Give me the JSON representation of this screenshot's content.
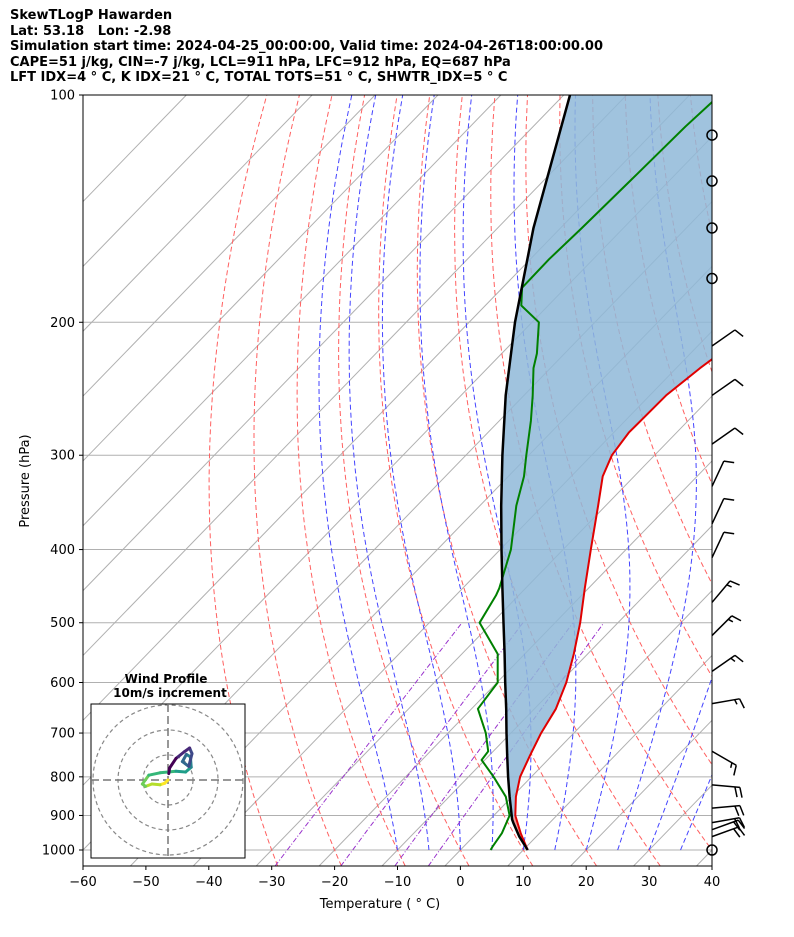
{
  "header": {
    "line1": "SkewTLogP Hawarden",
    "line2": "Lat: 53.18   Lon: -2.98",
    "line3": "Simulation start time: 2024-04-25_00:00:00, Valid time: 2024-04-26T18:00:00.00",
    "line4": "CAPE=51 j/kg, CIN=-7 j/kg, LCL=911 hPa, LFC=912 hPa, EQ=687 hPa",
    "line5": "LFT IDX=4 ° C, K IDX=21 ° C, TOTAL TOTS=51 ° C, SHWTR_IDX=5 ° C"
  },
  "chart_data": {
    "type": "line",
    "subtype": "skew-T log-P",
    "xlabel": "Temperature ( ° C)",
    "ylabel": "Pressure (hPa)",
    "xlim": [
      -60,
      40
    ],
    "ylim": [
      1050,
      100
    ],
    "yscale": "log",
    "x_ticks": [
      "−60",
      "−50",
      "−40",
      "−30",
      "−20",
      "−10",
      "0",
      "10",
      "20",
      "30",
      "40"
    ],
    "y_ticks": [
      "100",
      "200",
      "300",
      "400",
      "500",
      "600",
      "700",
      "800",
      "900",
      "1000"
    ],
    "grid": true,
    "colors": {
      "temperature": "#e00000",
      "dewpoint": "#008000",
      "parcel": "#000000",
      "cape_fill": "#8fb9d8",
      "dry_adiabats": "#ff6060",
      "moist_adiabats": "#4444ff",
      "mixing_ratio": "#9933cc",
      "isotherms": "#b0b0b0"
    },
    "series": [
      {
        "key": "temperature",
        "points": [
          [
            1000,
            10.7
          ],
          [
            950,
            7.0
          ],
          [
            900,
            3.4
          ],
          [
            850,
            0.6
          ],
          [
            800,
            -1.8
          ],
          [
            750,
            -3.5
          ],
          [
            700,
            -5.2
          ],
          [
            650,
            -6.6
          ],
          [
            600,
            -9.0
          ],
          [
            550,
            -12.2
          ],
          [
            500,
            -16.0
          ],
          [
            450,
            -20.6
          ],
          [
            400,
            -25.6
          ],
          [
            350,
            -31.2
          ],
          [
            320,
            -35.0
          ],
          [
            300,
            -36.8
          ],
          [
            280,
            -37.6
          ],
          [
            250,
            -37.4
          ],
          [
            230,
            -36.2
          ],
          [
            210,
            -34.4
          ],
          [
            190,
            -32.5
          ],
          [
            180,
            -32.2
          ],
          [
            170,
            -34.2
          ],
          [
            160,
            -37.4
          ],
          [
            150,
            -39.8
          ],
          [
            140,
            -42.3
          ],
          [
            130,
            -45.3
          ],
          [
            120,
            -49.0
          ],
          [
            110,
            -53.0
          ],
          [
            100,
            -57.0
          ]
        ]
      },
      {
        "key": "dewpoint",
        "points": [
          [
            1000,
            4.8
          ],
          [
            990,
            4.6
          ],
          [
            950,
            4.0
          ],
          [
            900,
            2.5
          ],
          [
            850,
            -1.0
          ],
          [
            800,
            -6.0
          ],
          [
            760,
            -10.5
          ],
          [
            740,
            -10.8
          ],
          [
            700,
            -14.0
          ],
          [
            650,
            -19.0
          ],
          [
            600,
            -19.9
          ],
          [
            550,
            -24.3
          ],
          [
            500,
            -32.0
          ],
          [
            460,
            -33.6
          ],
          [
            450,
            -34.2
          ],
          [
            400,
            -38.3
          ],
          [
            350,
            -44.2
          ],
          [
            320,
            -47.5
          ],
          [
            300,
            -50.4
          ],
          [
            270,
            -55.0
          ],
          [
            250,
            -58.6
          ],
          [
            230,
            -62.7
          ],
          [
            220,
            -64.4
          ],
          [
            200,
            -68.9
          ],
          [
            190,
            -74.3
          ],
          [
            180,
            -76.9
          ],
          [
            165,
            -77.0
          ],
          [
            150,
            -76.6
          ],
          [
            130,
            -76.2
          ],
          [
            110,
            -75.8
          ],
          [
            100,
            -75.2
          ]
        ]
      },
      {
        "key": "parcel",
        "points": [
          [
            1000,
            10.7
          ],
          [
            960,
            7.3
          ],
          [
            920,
            4.2
          ],
          [
            911,
            3.5
          ],
          [
            850,
            -0.4
          ],
          [
            800,
            -3.7
          ],
          [
            750,
            -7.1
          ],
          [
            700,
            -10.7
          ],
          [
            650,
            -14.5
          ],
          [
            600,
            -18.7
          ],
          [
            550,
            -23.2
          ],
          [
            500,
            -28.2
          ],
          [
            450,
            -33.7
          ],
          [
            400,
            -39.8
          ],
          [
            350,
            -46.6
          ],
          [
            300,
            -54.2
          ],
          [
            250,
            -62.9
          ],
          [
            200,
            -72.7
          ],
          [
            150,
            -84.3
          ],
          [
            100,
            -99.0
          ]
        ]
      }
    ],
    "wind_barbs": [
      {
        "p": 1000,
        "dir": 270,
        "kt": 0
      },
      {
        "p": 960,
        "dir": 70,
        "kt": 20
      },
      {
        "p": 940,
        "dir": 70,
        "kt": 20
      },
      {
        "p": 920,
        "dir": 80,
        "kt": 20
      },
      {
        "p": 880,
        "dir": 85,
        "kt": 20
      },
      {
        "p": 820,
        "dir": 95,
        "kt": 20
      },
      {
        "p": 740,
        "dir": 120,
        "kt": 15
      },
      {
        "p": 640,
        "dir": 80,
        "kt": 15
      },
      {
        "p": 580,
        "dir": 55,
        "kt": 15
      },
      {
        "p": 520,
        "dir": 45,
        "kt": 15
      },
      {
        "p": 470,
        "dir": 40,
        "kt": 15
      },
      {
        "p": 410,
        "dir": 25,
        "kt": 10
      },
      {
        "p": 370,
        "dir": 25,
        "kt": 10
      },
      {
        "p": 330,
        "dir": 25,
        "kt": 10
      },
      {
        "p": 290,
        "dir": 55,
        "kt": 10
      },
      {
        "p": 250,
        "dir": 55,
        "kt": 10
      },
      {
        "p": 215,
        "dir": 55,
        "kt": 10
      },
      {
        "p": 175,
        "dir": 270,
        "kt": 0
      },
      {
        "p": 150,
        "dir": 270,
        "kt": 0
      },
      {
        "p": 130,
        "dir": 270,
        "kt": 0
      },
      {
        "p": 113,
        "dir": 270,
        "kt": 0
      }
    ],
    "hodograph": {
      "title": "Wind Profile",
      "subtitle": "10m/s increment",
      "rings": 3,
      "points": [
        [
          0,
          0
        ],
        [
          -0.4,
          -0.4
        ],
        [
          -1.0,
          -0.6
        ],
        [
          -2.0,
          -0.5
        ],
        [
          -2.8,
          -0.8
        ],
        [
          -3.2,
          -0.5
        ],
        [
          -2.4,
          0.6
        ],
        [
          -1.0,
          0.9
        ],
        [
          1.0,
          1.1
        ],
        [
          2.2,
          1.0
        ],
        [
          2.9,
          1.6
        ],
        [
          2.8,
          2.9
        ],
        [
          2.3,
          3.2
        ],
        [
          1.8,
          2.3
        ],
        [
          2.6,
          1.7
        ],
        [
          3.0,
          3.3
        ],
        [
          2.7,
          4.0
        ],
        [
          2.0,
          3.5
        ],
        [
          1.0,
          2.7
        ],
        [
          0.2,
          1.5
        ],
        [
          0.1,
          0.8
        ]
      ]
    }
  }
}
